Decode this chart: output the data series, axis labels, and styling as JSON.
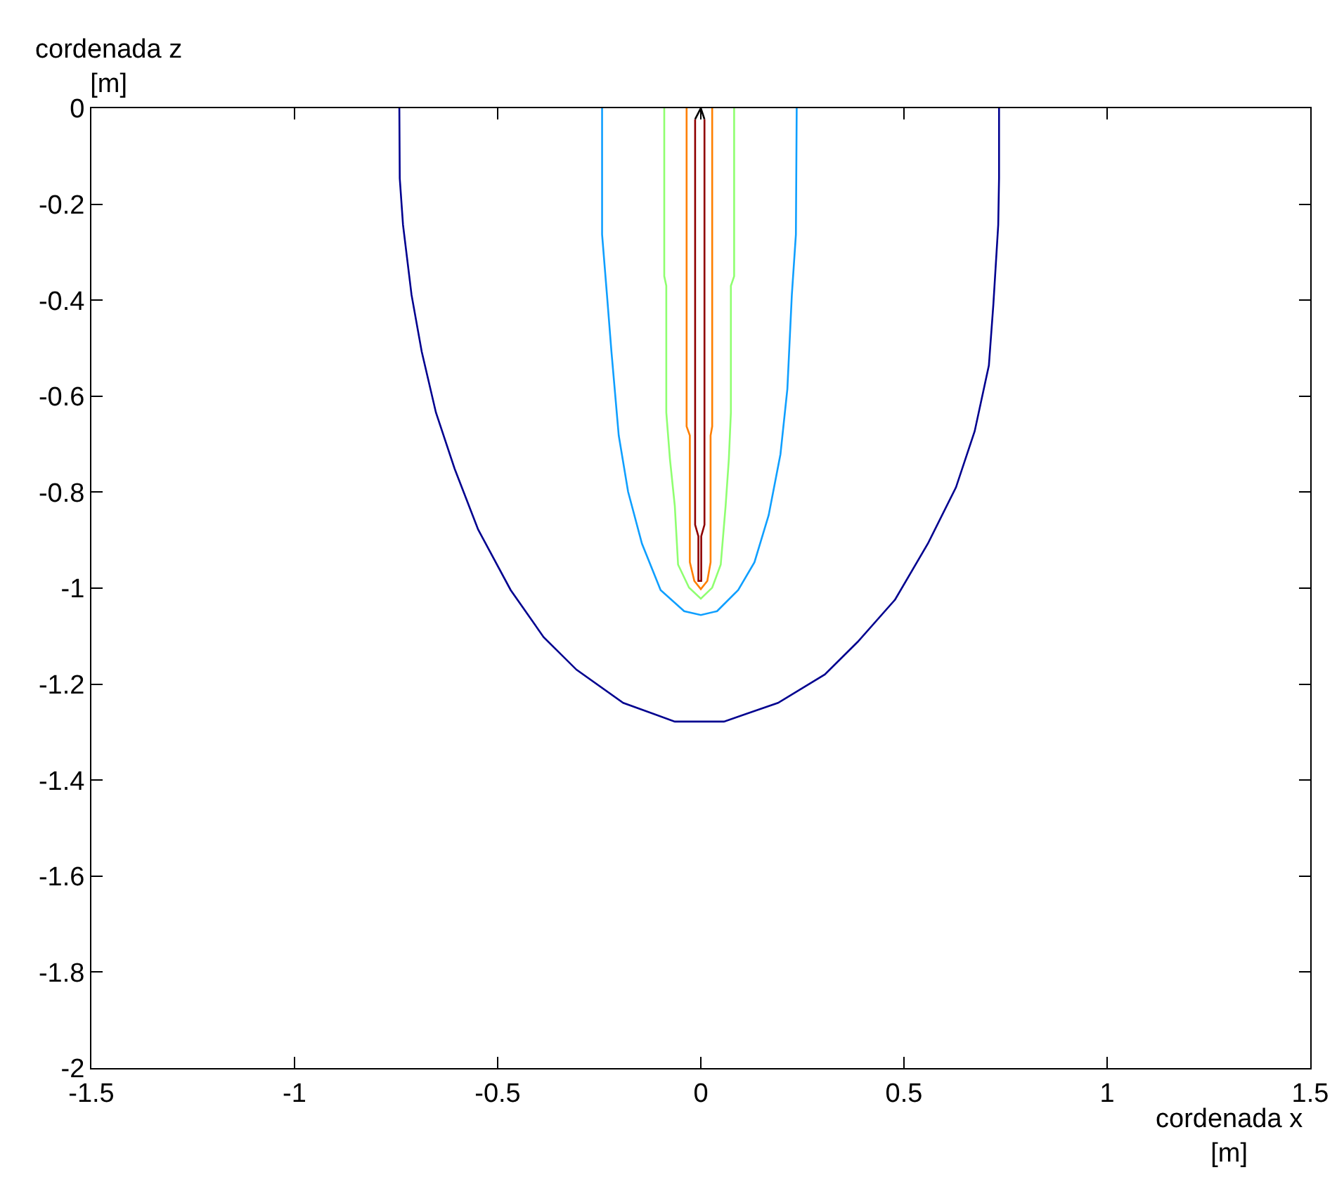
{
  "chart_data": {
    "type": "line",
    "xlabel": "cordenada x\n[m]",
    "ylabel": "cordenada z\n[m]",
    "xlim": [
      -1.5,
      1.5
    ],
    "ylim": [
      -2,
      0
    ],
    "xticks": [
      -1.5,
      -1,
      -0.5,
      0,
      0.5,
      1,
      1.5
    ],
    "yticks": [
      -2,
      -1.8,
      -1.6,
      -1.4,
      -1.2,
      -1,
      -0.8,
      -0.6,
      -0.4,
      -0.2,
      0
    ],
    "series": [
      {
        "color": "#00008f",
        "x": [
          -0.742,
          -0.741,
          -0.733,
          -0.712,
          -0.687,
          -0.652,
          -0.606,
          -0.548,
          -0.468,
          -0.387,
          -0.306,
          -0.191,
          -0.064,
          0.057,
          0.19,
          0.305,
          0.386,
          0.478,
          0.559,
          0.628,
          0.674,
          0.709,
          0.72,
          0.732,
          0.734,
          0.734
        ],
        "values": [
          0,
          -0.146,
          -0.243,
          -0.389,
          -0.507,
          -0.634,
          -0.751,
          -0.878,
          -1.004,
          -1.102,
          -1.17,
          -1.239,
          -1.278,
          -1.278,
          -1.239,
          -1.18,
          -1.112,
          -1.024,
          -0.907,
          -0.79,
          -0.673,
          -0.536,
          -0.409,
          -0.243,
          -0.146,
          0
        ]
      },
      {
        "color": "#0f9fff",
        "x": [
          -0.243,
          -0.243,
          -0.231,
          -0.22,
          -0.202,
          -0.179,
          -0.145,
          -0.099,
          -0.041,
          0,
          0.04,
          0.092,
          0.132,
          0.167,
          0.196,
          0.213,
          0.224,
          0.234,
          0.236
        ],
        "values": [
          0,
          -0.263,
          -0.389,
          -0.507,
          -0.682,
          -0.799,
          -0.907,
          -1.004,
          -1.048,
          -1.056,
          -1.048,
          -1.004,
          -0.946,
          -0.848,
          -0.721,
          -0.585,
          -0.389,
          -0.263,
          0
        ]
      },
      {
        "color": "#8fff70",
        "x": [
          -0.09,
          -0.09,
          -0.085,
          -0.085,
          -0.076,
          -0.064,
          -0.056,
          -0.029,
          0,
          0.028,
          0.049,
          0.061,
          0.069,
          0.074,
          0.074,
          0.082,
          0.082
        ],
        "values": [
          0,
          -0.35,
          -0.37,
          -0.634,
          -0.731,
          -0.829,
          -0.951,
          -0.999,
          -1.022,
          -0.999,
          -0.951,
          -0.829,
          -0.731,
          -0.634,
          -0.37,
          -0.35,
          0
        ]
      },
      {
        "color": "#ff7f00",
        "x": [
          -0.035,
          -0.035,
          -0.027,
          -0.027,
          -0.016,
          0,
          0.016,
          0.024,
          0.024,
          0.028,
          0.028
        ],
        "values": [
          0,
          -0.663,
          -0.682,
          -0.946,
          -0.985,
          -1.002,
          -0.985,
          -0.946,
          -0.682,
          -0.663,
          0
        ]
      },
      {
        "color": "#8f0000",
        "x": [
          -0.014,
          -0.014,
          -0.006,
          -0.006,
          0.001,
          0.001,
          0.009,
          0.009
        ],
        "values": [
          -0.023,
          -0.868,
          -0.892,
          -0.985,
          -0.985,
          -0.892,
          -0.868,
          -0.023
        ]
      },
      {
        "color": "#000000",
        "x": [
          -0.014,
          0,
          0.009
        ],
        "values": [
          -0.023,
          0,
          -0.023
        ]
      }
    ]
  }
}
